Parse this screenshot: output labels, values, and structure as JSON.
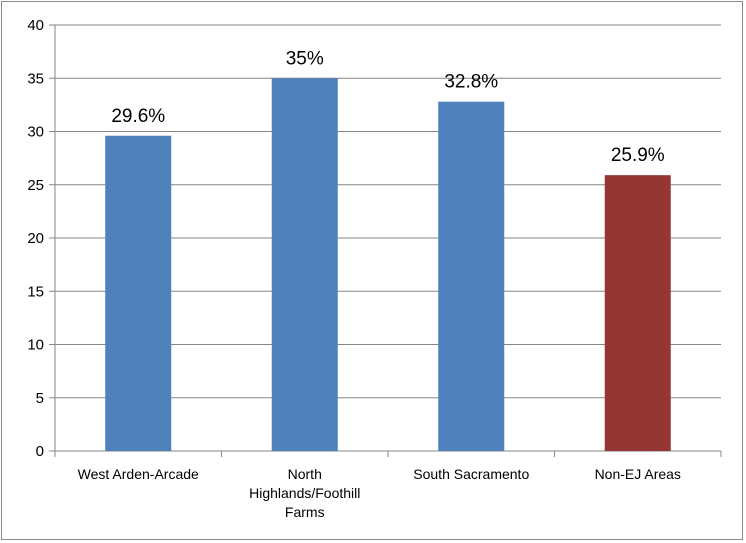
{
  "chart_data": {
    "type": "bar",
    "categories": [
      "West Arden-Arcade",
      "North Highlands/Foothill Farms",
      "South Sacramento",
      "Non-EJ Areas"
    ],
    "category_lines": [
      [
        "West Arden-Arcade"
      ],
      [
        "North",
        "Highlands/Foothill",
        "Farms"
      ],
      [
        "South Sacramento"
      ],
      [
        "Non-EJ Areas"
      ]
    ],
    "values": [
      29.6,
      35,
      32.8,
      25.9
    ],
    "data_labels": [
      "29.6%",
      "35%",
      "32.8%",
      "25.9%"
    ],
    "bar_colors": [
      "#4f81bd",
      "#4f81bd",
      "#4f81bd",
      "#943634"
    ],
    "title": "",
    "xlabel": "",
    "ylabel": "",
    "ylim": [
      0,
      40
    ],
    "yticks": [
      0,
      5,
      10,
      15,
      20,
      25,
      30,
      35,
      40
    ],
    "grid": true,
    "legend": "none"
  }
}
